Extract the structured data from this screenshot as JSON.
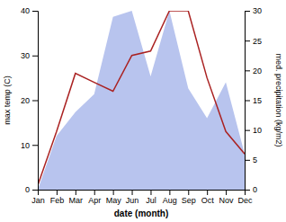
{
  "chart_data": {
    "type": "line",
    "categories": [
      "Jan",
      "Feb",
      "Mar",
      "Apr",
      "May",
      "Jun",
      "Jul",
      "Aug",
      "Sep",
      "Oct",
      "Nov",
      "Dec"
    ],
    "xlabel": "date (month)",
    "ylabel": "max temp (C)",
    "y2label": "med. precipitation (kg/m2)",
    "ylim": [
      0,
      40
    ],
    "yticks": [
      0,
      10,
      20,
      30,
      40
    ],
    "y2lim": [
      0,
      30
    ],
    "y2ticks": [
      0,
      5,
      10,
      15,
      20,
      25,
      30
    ],
    "series": [
      {
        "type": "area",
        "axis": "y2",
        "color": "#b8c4ee",
        "values": [
          0,
          9,
          13,
          16,
          29,
          30,
          19,
          30,
          17,
          12,
          18,
          6
        ]
      },
      {
        "type": "line",
        "color": "#aa2222",
        "values": [
          1,
          13,
          26,
          24,
          22,
          30,
          31,
          40,
          40,
          25,
          13,
          8
        ]
      }
    ]
  }
}
